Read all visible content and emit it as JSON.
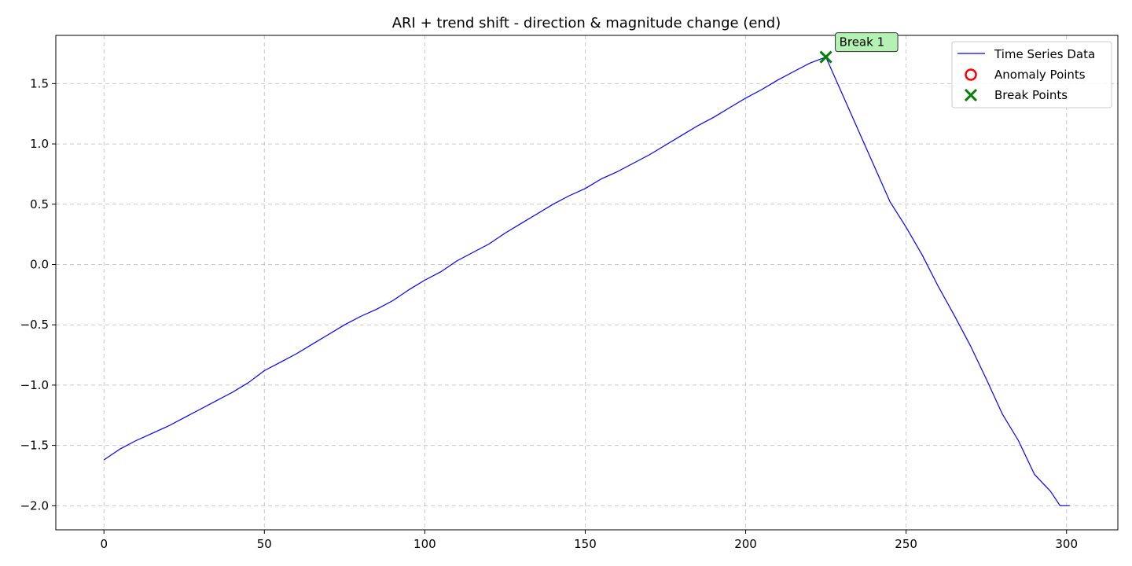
{
  "chart_data": {
    "type": "line",
    "title": "ARI + trend shift - direction & magnitude change (end)",
    "xlabel": "",
    "ylabel": "",
    "xlim": [
      -15,
      316
    ],
    "ylim": [
      -2.2,
      1.9
    ],
    "x_ticks": [
      0,
      50,
      100,
      150,
      200,
      250,
      300
    ],
    "x_tick_labels": [
      "0",
      "50",
      "100",
      "150",
      "200",
      "250",
      "300"
    ],
    "y_ticks": [
      -2.0,
      -1.5,
      -1.0,
      -0.5,
      0.0,
      0.5,
      1.0,
      1.5
    ],
    "y_tick_labels": [
      "−2.0",
      "−1.5",
      "−1.0",
      "−0.5",
      "0.0",
      "0.5",
      "1.0",
      "1.5"
    ],
    "grid": true,
    "legend_position": "top-right",
    "series": [
      {
        "name": "Time Series Data",
        "color": "#0000ff",
        "x": [
          0,
          5,
          10,
          15,
          20,
          25,
          30,
          35,
          40,
          45,
          50,
          55,
          60,
          65,
          70,
          75,
          80,
          85,
          90,
          95,
          100,
          105,
          110,
          115,
          120,
          125,
          130,
          135,
          140,
          145,
          150,
          155,
          160,
          165,
          170,
          175,
          180,
          185,
          190,
          195,
          200,
          205,
          210,
          215,
          220,
          225,
          230,
          235,
          240,
          245,
          250,
          255,
          260,
          265,
          270,
          275,
          280,
          285,
          290,
          295,
          298,
          301
        ],
        "y": [
          -1.62,
          -1.53,
          -1.46,
          -1.4,
          -1.34,
          -1.27,
          -1.2,
          -1.13,
          -1.06,
          -0.98,
          -0.88,
          -0.81,
          -0.74,
          -0.66,
          -0.58,
          -0.5,
          -0.43,
          -0.37,
          -0.3,
          -0.21,
          -0.13,
          -0.06,
          0.03,
          0.1,
          0.17,
          0.26,
          0.34,
          0.42,
          0.5,
          0.57,
          0.63,
          0.71,
          0.77,
          0.84,
          0.91,
          0.99,
          1.07,
          1.15,
          1.22,
          1.3,
          1.38,
          1.45,
          1.53,
          1.6,
          1.67,
          1.72,
          1.42,
          1.12,
          0.82,
          0.52,
          0.31,
          0.08,
          -0.18,
          -0.42,
          -0.67,
          -0.95,
          -1.24,
          -1.46,
          -1.74,
          -1.88,
          -2.0,
          -2.0
        ]
      }
    ],
    "anomaly_points": {
      "name": "Anomaly Points",
      "color": "#ff0000",
      "x": [],
      "y": []
    },
    "break_points": {
      "name": "Break Points",
      "color": "#008000",
      "x": [
        225
      ],
      "y": [
        1.72
      ]
    },
    "annotations": [
      {
        "text": "Break 1",
        "x": 225,
        "y": 1.72,
        "bg": "#b3f2b3"
      }
    ]
  }
}
